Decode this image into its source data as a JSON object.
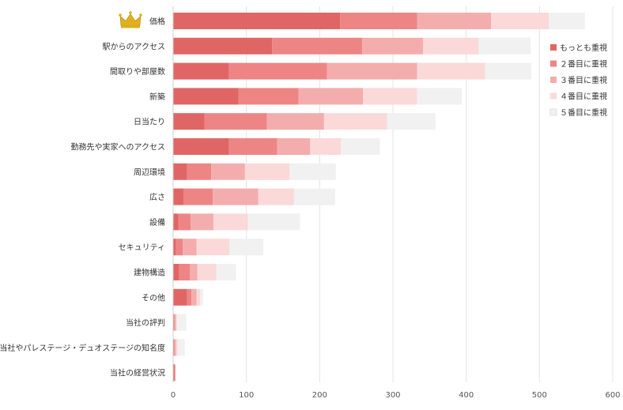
{
  "chart_data": {
    "type": "bar",
    "orientation": "horizontal",
    "stacked": true,
    "categories": [
      "価格",
      "駅からのアクセス",
      "間取りや部屋数",
      "新築",
      "日当たり",
      "勤務先や実家へのアクセス",
      "周辺環境",
      "広さ",
      "設備",
      "セキュリティ",
      "建物構造",
      "その他",
      "当社の評判",
      "当社やパレステージ・デュオステージの知名度",
      "当社の経営状況"
    ],
    "series": [
      {
        "name": "もっとも重視",
        "color": "#e06666",
        "values": [
          228,
          135,
          76,
          89,
          43,
          76,
          19,
          14,
          7,
          4,
          8,
          19,
          1,
          1,
          2
        ]
      },
      {
        "name": "２番目に重視",
        "color": "#ee8585",
        "values": [
          105,
          123,
          134,
          82,
          85,
          66,
          33,
          40,
          17,
          9,
          15,
          6,
          1,
          1,
          1
        ]
      },
      {
        "name": "３番目に重視",
        "color": "#f4adad",
        "values": [
          101,
          83,
          123,
          88,
          78,
          45,
          46,
          62,
          31,
          19,
          10,
          7,
          2,
          2,
          0
        ]
      },
      {
        "name": "４番目に重視",
        "color": "#fbd9d9",
        "values": [
          79,
          76,
          93,
          74,
          86,
          42,
          61,
          49,
          47,
          45,
          26,
          5,
          1,
          2,
          0
        ]
      },
      {
        "name": "５番目に重視",
        "color": "#f1f1f1",
        "values": [
          49,
          71,
          63,
          61,
          66,
          53,
          63,
          56,
          71,
          46,
          27,
          4,
          13,
          10,
          0
        ]
      }
    ],
    "xlim": [
      0,
      600
    ],
    "xticks": [
      0,
      100,
      200,
      300,
      400,
      500,
      600
    ],
    "grid": true,
    "legend_position": "right",
    "highlight_icon": "crown-icon",
    "highlight_category_index": 0,
    "highlight_color": "#e0b020"
  }
}
